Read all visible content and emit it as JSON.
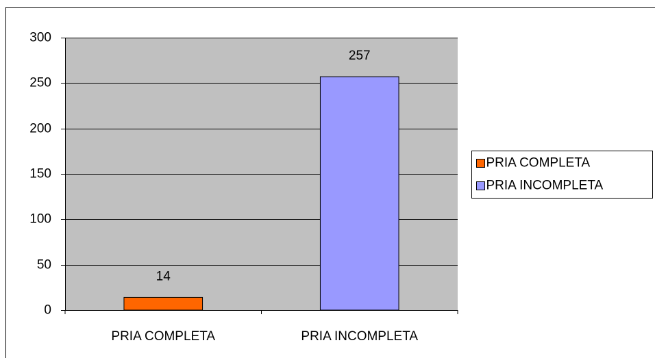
{
  "chart_data": {
    "type": "bar",
    "categories": [
      "PRIA COMPLETA",
      "PRIA INCOMPLETA"
    ],
    "values": [
      14,
      257
    ],
    "colors": [
      "#ff6600",
      "#9999ff"
    ],
    "ylim": [
      0,
      300
    ],
    "yticks": [
      0,
      50,
      100,
      150,
      200,
      250,
      300
    ],
    "grid": true,
    "legend": "right"
  }
}
